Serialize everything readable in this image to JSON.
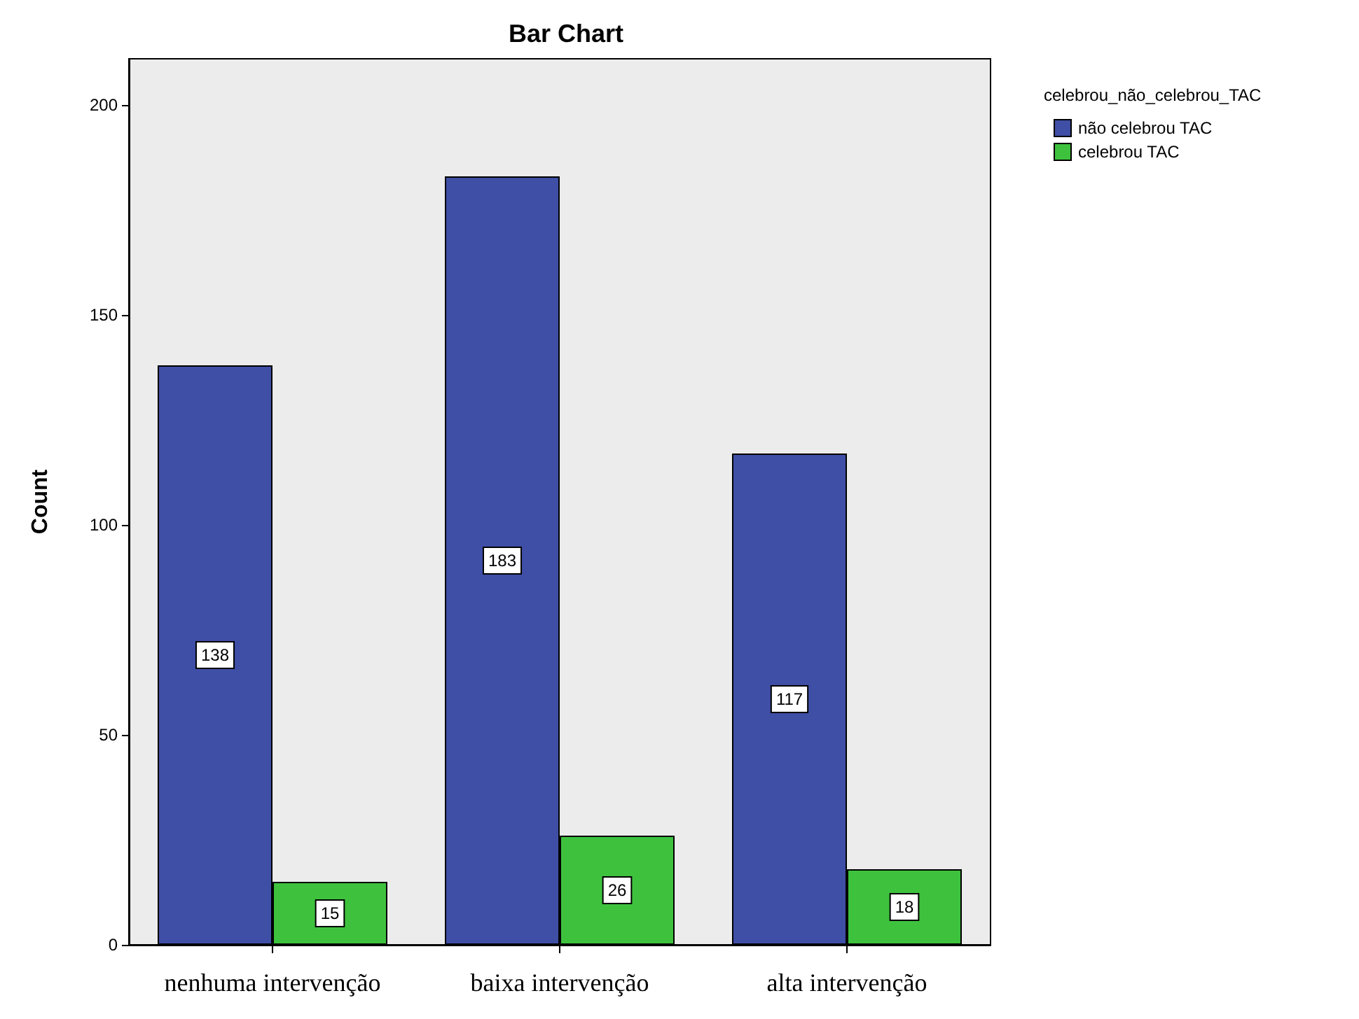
{
  "chart_data": {
    "type": "bar",
    "title": "Bar Chart",
    "ylabel": "Count",
    "legend_title": "celebrou_não_celebrou_TAC",
    "categories": [
      "nenhuma intervenção",
      "baixa intervenção",
      "alta intervenção"
    ],
    "series": [
      {
        "name": "não celebrou TAC",
        "color": "#3f4fa6",
        "values": [
          138,
          183,
          117
        ]
      },
      {
        "name": "celebrou TAC",
        "color": "#3ec23e",
        "values": [
          15,
          26,
          18
        ]
      }
    ],
    "ylim": [
      0,
      211
    ],
    "yticks": [
      0,
      50,
      100,
      150,
      200
    ],
    "grid": false,
    "legend": "top right",
    "data_labels": true
  }
}
